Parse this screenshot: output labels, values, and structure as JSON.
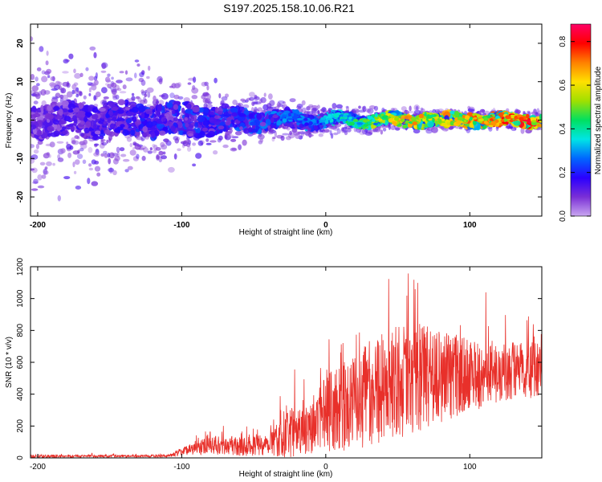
{
  "title": "S197.2025.158.10.06.R21",
  "chart_data": [
    {
      "type": "heatmap",
      "title": "S197.2025.158.10.06.R21",
      "xlabel": "Height of straight line (km)",
      "ylabel": "Frequency (Hz)",
      "xlim": [
        -205,
        150
      ],
      "ylim": [
        -25,
        25
      ],
      "x_ticks": [
        -200,
        -100,
        0,
        100
      ],
      "y_ticks": [
        -20,
        -10,
        0,
        10,
        20
      ],
      "colorbar": {
        "label": "Normalized spectral amplitude",
        "range": [
          0.0,
          0.88
        ],
        "ticks": [
          0.0,
          0.2,
          0.4,
          0.6,
          0.8
        ],
        "colormap": [
          "#c9a6f0",
          "#7a2fd6",
          "#2a00ff",
          "#0066ff",
          "#00e5e5",
          "#00e060",
          "#a0e000",
          "#ffe000",
          "#ff8000",
          "#ff0000",
          "#ff0066"
        ]
      },
      "ridge_center_hz": 0.0,
      "description_points": [
        {
          "x": -200,
          "spread_hz": 22,
          "peak": 0.15
        },
        {
          "x": -100,
          "spread_hz": 12,
          "peak": 0.25
        },
        {
          "x": -50,
          "spread_hz": 7,
          "peak": 0.28
        },
        {
          "x": 0,
          "spread_hz": 4,
          "peak": 0.35
        },
        {
          "x": 50,
          "spread_hz": 3,
          "peak": 0.7
        },
        {
          "x": 100,
          "spread_hz": 3,
          "peak": 0.75
        },
        {
          "x": 145,
          "spread_hz": 3,
          "peak": 0.88
        }
      ]
    },
    {
      "type": "line",
      "xlabel": "Height of straight line (km)",
      "ylabel": "SNR (10 * v/v)",
      "xlim": [
        -205,
        150
      ],
      "ylim": [
        0,
        1200
      ],
      "x_ticks": [
        -200,
        -100,
        0,
        100
      ],
      "y_ticks": [
        0,
        200,
        400,
        600,
        800,
        1000,
        1200
      ],
      "color": "#e8302a",
      "envelope": [
        {
          "x": -205,
          "base": 10,
          "amp": 20
        },
        {
          "x": -110,
          "base": 12,
          "amp": 15
        },
        {
          "x": -100,
          "base": 40,
          "amp": 50
        },
        {
          "x": -80,
          "base": 80,
          "amp": 120
        },
        {
          "x": -60,
          "base": 70,
          "amp": 120
        },
        {
          "x": -40,
          "base": 90,
          "amp": 150
        },
        {
          "x": -25,
          "base": 150,
          "amp": 300
        },
        {
          "x": 0,
          "base": 280,
          "amp": 500
        },
        {
          "x": 20,
          "base": 350,
          "amp": 600
        },
        {
          "x": 40,
          "base": 450,
          "amp": 700
        },
        {
          "x": 65,
          "base": 500,
          "amp": 700
        },
        {
          "x": 100,
          "base": 520,
          "amp": 450
        },
        {
          "x": 150,
          "base": 560,
          "amp": 350
        }
      ]
    }
  ]
}
